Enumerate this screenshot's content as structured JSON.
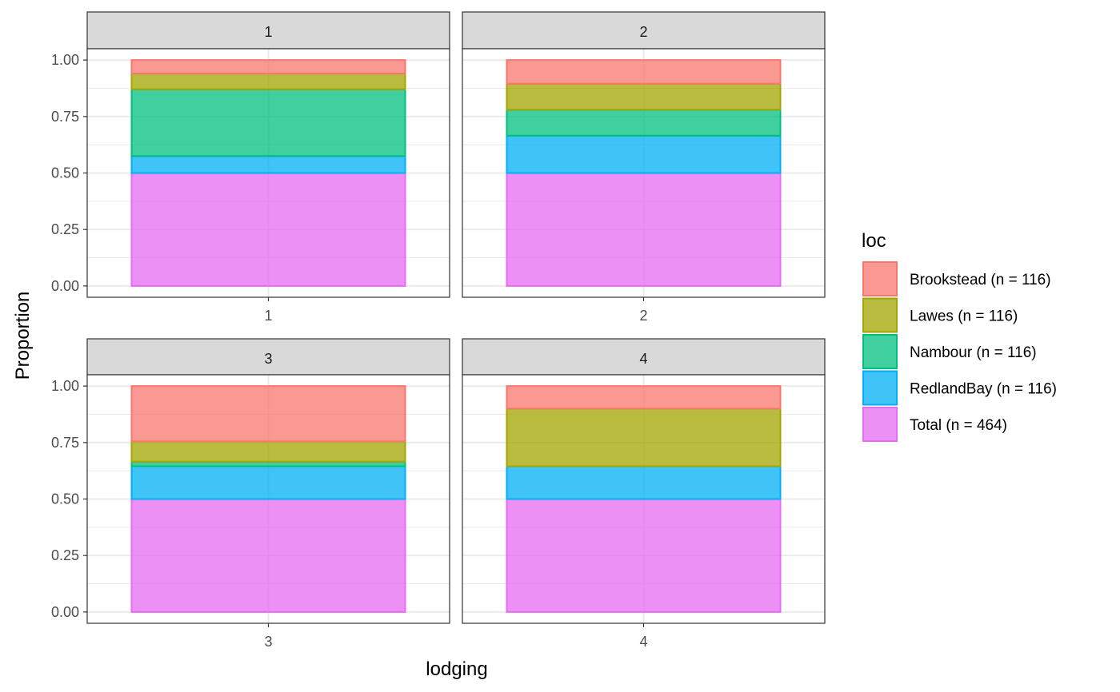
{
  "chart_data": {
    "type": "bar",
    "stacked": true,
    "faceted": true,
    "facet_variable": "lodging",
    "xlabel": "lodging",
    "ylabel": "Proportion",
    "ylim": [
      0,
      1
    ],
    "yticks": [
      "0.00",
      "0.25",
      "0.50",
      "0.75",
      "1.00"
    ],
    "grid": true,
    "legend": {
      "title": "loc",
      "position": "right",
      "entries": [
        {
          "label": "Brookstead (n = 116)",
          "color": "#F8766D"
        },
        {
          "label": "Lawes (n = 116)",
          "color": "#A3A500"
        },
        {
          "label": "Nambour (n = 116)",
          "color": "#00BF7D"
        },
        {
          "label": "RedlandBay (n = 116)",
          "color": "#00B0F6"
        },
        {
          "label": "Total (n = 464)",
          "color": "#E76BF3"
        }
      ]
    },
    "stack_order_bottom_to_top": [
      "Total (n = 464)",
      "RedlandBay (n = 116)",
      "Nambour (n = 116)",
      "Lawes (n = 116)",
      "Brookstead (n = 116)"
    ],
    "panels": [
      {
        "strip": "1",
        "x_tick": "1",
        "values": {
          "Total (n = 464)": 0.5,
          "RedlandBay (n = 116)": 0.075,
          "Nambour (n = 116)": 0.295,
          "Lawes (n = 116)": 0.07,
          "Brookstead (n = 116)": 0.06
        }
      },
      {
        "strip": "2",
        "x_tick": "2",
        "values": {
          "Total (n = 464)": 0.5,
          "RedlandBay (n = 116)": 0.165,
          "Nambour (n = 116)": 0.115,
          "Lawes (n = 116)": 0.115,
          "Brookstead (n = 116)": 0.105
        }
      },
      {
        "strip": "3",
        "x_tick": "3",
        "values": {
          "Total (n = 464)": 0.5,
          "RedlandBay (n = 116)": 0.145,
          "Nambour (n = 116)": 0.02,
          "Lawes (n = 116)": 0.09,
          "Brookstead (n = 116)": 0.245
        }
      },
      {
        "strip": "4",
        "x_tick": "4",
        "values": {
          "Total (n = 464)": 0.5,
          "RedlandBay (n = 116)": 0.145,
          "Nambour (n = 116)": 0.0,
          "Lawes (n = 116)": 0.255,
          "Brookstead (n = 116)": 0.1
        }
      }
    ]
  }
}
